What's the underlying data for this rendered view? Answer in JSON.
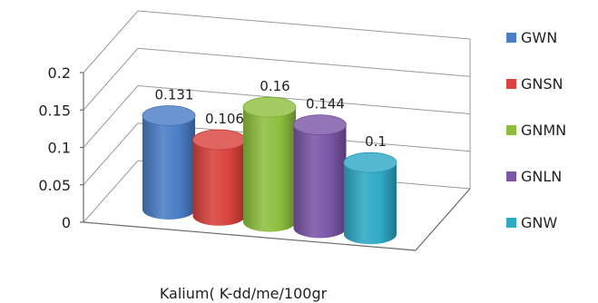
{
  "chart_data": {
    "type": "bar",
    "style": "3d-cylinder",
    "categories": [
      "GWN",
      "GNSN",
      "GNMN",
      "GNLN",
      "GNW"
    ],
    "values": [
      0.131,
      0.106,
      0.16,
      0.144,
      0.1
    ],
    "data_labels": [
      "0.131",
      "0.106",
      "0.16",
      "0.144",
      "0.1"
    ],
    "colors": [
      "#4A7EC6",
      "#D9423D",
      "#8DBF3F",
      "#7B55A6",
      "#2FA9C6"
    ],
    "xlabel": "Kalium( K-dd/me/100gr",
    "ylim": [
      0,
      0.2
    ],
    "yticks": [
      0,
      0.05,
      0.1,
      0.15,
      0.2
    ],
    "ytick_labels": [
      "0",
      "0.05",
      "0.1",
      "0.15",
      "0.2"
    ],
    "grid": true,
    "legend_position": "right"
  }
}
